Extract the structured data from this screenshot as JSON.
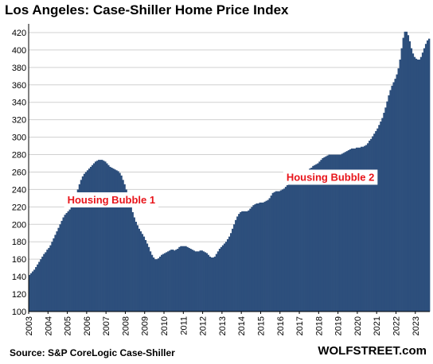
{
  "title": "Los Angeles: Case-Shiller Home Price Index",
  "source": "Source: S&P CoreLogic Case-Shiller",
  "brand": "WOLFSTREET.com",
  "colors": {
    "bar": "#2d4f7c",
    "annotation": "#e8141a",
    "grid": "#d0d0d0"
  },
  "chart_data": {
    "type": "bar",
    "title": "Los Angeles: Case-Shiller Home Price Index",
    "xlabel": "",
    "ylabel": "",
    "ylim": [
      100,
      430
    ],
    "yticks": [
      100,
      120,
      140,
      160,
      180,
      200,
      220,
      240,
      260,
      280,
      300,
      320,
      340,
      360,
      380,
      400,
      420
    ],
    "xticks": [
      "2003",
      "2004",
      "2005",
      "2006",
      "2007",
      "2008",
      "2009",
      "2010",
      "2011",
      "2012",
      "2013",
      "2014",
      "2015",
      "2016",
      "2017",
      "2018",
      "2019",
      "2020",
      "2021",
      "2022",
      "2023"
    ],
    "grid": true,
    "series_by_year": {
      "2003": [
        142,
        144,
        146,
        148,
        151,
        154,
        157,
        160,
        163,
        166,
        168,
        171
      ],
      "2004": [
        173,
        176,
        180,
        184,
        188,
        192,
        196,
        200,
        204,
        208,
        211,
        213
      ],
      "2005": [
        215,
        217,
        220,
        224,
        229,
        235,
        240,
        246,
        251,
        255,
        258,
        260
      ],
      "2006": [
        262,
        264,
        266,
        268,
        270,
        272,
        273,
        274,
        274,
        274,
        273,
        272
      ],
      "2007": [
        270,
        268,
        266,
        265,
        264,
        263,
        262,
        261,
        259,
        256,
        251,
        246
      ],
      "2008": [
        240,
        233,
        226,
        220,
        214,
        208,
        203,
        199,
        195,
        192,
        189,
        186
      ],
      "2009": [
        182,
        178,
        174,
        169,
        165,
        162,
        160,
        160,
        161,
        163,
        165,
        166
      ],
      "2010": [
        167,
        168,
        169,
        170,
        171,
        171,
        170,
        171,
        172,
        174,
        175,
        175
      ],
      "2011": [
        175,
        175,
        174,
        173,
        172,
        171,
        170,
        169,
        169,
        169,
        170,
        170
      ],
      "2012": [
        169,
        168,
        167,
        165,
        163,
        162,
        162,
        163,
        166,
        169,
        172,
        174
      ],
      "2013": [
        176,
        178,
        180,
        183,
        186,
        190,
        195,
        200,
        205,
        209,
        212,
        214
      ],
      "2014": [
        215,
        215,
        215,
        215,
        216,
        218,
        220,
        222,
        223,
        224,
        224,
        225
      ],
      "2015": [
        225,
        225,
        226,
        227,
        228,
        230,
        233,
        236,
        237,
        238,
        238,
        238
      ],
      "2016": [
        239,
        240,
        241,
        243,
        245,
        247,
        249,
        251,
        251,
        252,
        252,
        252
      ],
      "2017": [
        253,
        254,
        256,
        258,
        260,
        262,
        264,
        265,
        267,
        268,
        269,
        270
      ],
      "2018": [
        272,
        274,
        276,
        277,
        278,
        279,
        280,
        280,
        280,
        280,
        280,
        280
      ],
      "2019": [
        280,
        280,
        281,
        282,
        283,
        284,
        285,
        286,
        287,
        287,
        287,
        288
      ],
      "2020": [
        288,
        288,
        289,
        289,
        290,
        291,
        293,
        296,
        298,
        301,
        304,
        307
      ],
      "2021": [
        310,
        314,
        318,
        322,
        328,
        334,
        341,
        348,
        354,
        359,
        363,
        367
      ],
      "2022": [
        372,
        379,
        389,
        402,
        414,
        421,
        421,
        417,
        410,
        402,
        396,
        392
      ],
      "2023": [
        390,
        389,
        389,
        392,
        397,
        402,
        407,
        411,
        413
      ]
    },
    "annotations": [
      {
        "text": "Housing Bubble 1",
        "x": "2005-01",
        "y": 224
      },
      {
        "text": "Housing Bubble 2",
        "x": "2016-05",
        "y": 250
      }
    ]
  }
}
